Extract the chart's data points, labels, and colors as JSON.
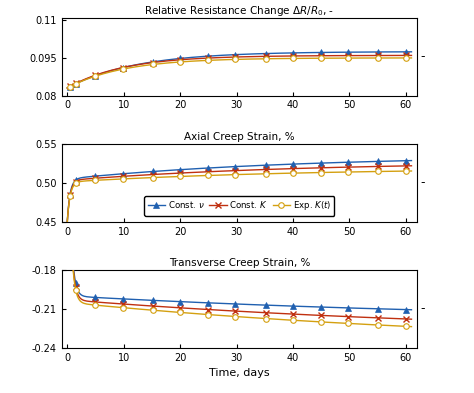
{
  "title_top": "Relative Resistance Change $\\Delta R/R_0$, -",
  "title_mid": "Axial Creep Strain, %",
  "title_bot": "Transverse Creep Strain, %",
  "xlabel": "Time, days",
  "colors": {
    "blue": "#2060B0",
    "red": "#C03010",
    "yellow": "#D4A010"
  },
  "legend_labels": [
    "Const. $\\nu$",
    "Const. $K$",
    "Exp. $K(t)$"
  ],
  "xlim": [
    -1,
    62
  ],
  "xticks": [
    0,
    10,
    20,
    30,
    40,
    50,
    60
  ],
  "plot1_ylim": [
    0.08,
    0.111
  ],
  "plot1_yticks": [
    0.08,
    0.095,
    0.11
  ],
  "plot2_ylim": [
    0.45,
    0.55
  ],
  "plot2_yticks": [
    0.45,
    0.5,
    0.55
  ],
  "plot3_ylim": [
    -0.24,
    -0.18
  ],
  "plot3_yticks": [
    -0.24,
    -0.21,
    -0.18
  ]
}
